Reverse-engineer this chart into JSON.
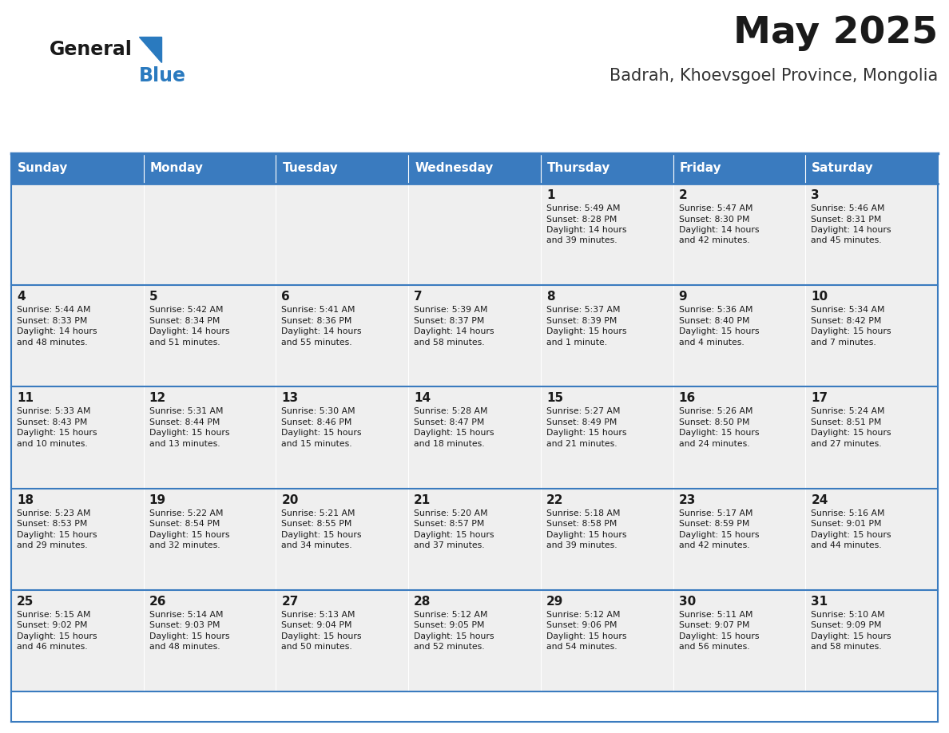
{
  "title": "May 2025",
  "subtitle": "Badrah, Khoevsgoel Province, Mongolia",
  "header_color": "#3a7bbf",
  "header_text_color": "#ffffff",
  "cell_bg_color": "#efefef",
  "border_color": "#3a7bbf",
  "day_headers": [
    "Sunday",
    "Monday",
    "Tuesday",
    "Wednesday",
    "Thursday",
    "Friday",
    "Saturday"
  ],
  "weeks": [
    [
      {
        "day": "",
        "sunrise": "",
        "sunset": "",
        "daylight": ""
      },
      {
        "day": "",
        "sunrise": "",
        "sunset": "",
        "daylight": ""
      },
      {
        "day": "",
        "sunrise": "",
        "sunset": "",
        "daylight": ""
      },
      {
        "day": "",
        "sunrise": "",
        "sunset": "",
        "daylight": ""
      },
      {
        "day": "1",
        "sunrise": "5:49 AM",
        "sunset": "8:28 PM",
        "daylight": "14 hours\nand 39 minutes."
      },
      {
        "day": "2",
        "sunrise": "5:47 AM",
        "sunset": "8:30 PM",
        "daylight": "14 hours\nand 42 minutes."
      },
      {
        "day": "3",
        "sunrise": "5:46 AM",
        "sunset": "8:31 PM",
        "daylight": "14 hours\nand 45 minutes."
      }
    ],
    [
      {
        "day": "4",
        "sunrise": "5:44 AM",
        "sunset": "8:33 PM",
        "daylight": "14 hours\nand 48 minutes."
      },
      {
        "day": "5",
        "sunrise": "5:42 AM",
        "sunset": "8:34 PM",
        "daylight": "14 hours\nand 51 minutes."
      },
      {
        "day": "6",
        "sunrise": "5:41 AM",
        "sunset": "8:36 PM",
        "daylight": "14 hours\nand 55 minutes."
      },
      {
        "day": "7",
        "sunrise": "5:39 AM",
        "sunset": "8:37 PM",
        "daylight": "14 hours\nand 58 minutes."
      },
      {
        "day": "8",
        "sunrise": "5:37 AM",
        "sunset": "8:39 PM",
        "daylight": "15 hours\nand 1 minute."
      },
      {
        "day": "9",
        "sunrise": "5:36 AM",
        "sunset": "8:40 PM",
        "daylight": "15 hours\nand 4 minutes."
      },
      {
        "day": "10",
        "sunrise": "5:34 AM",
        "sunset": "8:42 PM",
        "daylight": "15 hours\nand 7 minutes."
      }
    ],
    [
      {
        "day": "11",
        "sunrise": "5:33 AM",
        "sunset": "8:43 PM",
        "daylight": "15 hours\nand 10 minutes."
      },
      {
        "day": "12",
        "sunrise": "5:31 AM",
        "sunset": "8:44 PM",
        "daylight": "15 hours\nand 13 minutes."
      },
      {
        "day": "13",
        "sunrise": "5:30 AM",
        "sunset": "8:46 PM",
        "daylight": "15 hours\nand 15 minutes."
      },
      {
        "day": "14",
        "sunrise": "5:28 AM",
        "sunset": "8:47 PM",
        "daylight": "15 hours\nand 18 minutes."
      },
      {
        "day": "15",
        "sunrise": "5:27 AM",
        "sunset": "8:49 PM",
        "daylight": "15 hours\nand 21 minutes."
      },
      {
        "day": "16",
        "sunrise": "5:26 AM",
        "sunset": "8:50 PM",
        "daylight": "15 hours\nand 24 minutes."
      },
      {
        "day": "17",
        "sunrise": "5:24 AM",
        "sunset": "8:51 PM",
        "daylight": "15 hours\nand 27 minutes."
      }
    ],
    [
      {
        "day": "18",
        "sunrise": "5:23 AM",
        "sunset": "8:53 PM",
        "daylight": "15 hours\nand 29 minutes."
      },
      {
        "day": "19",
        "sunrise": "5:22 AM",
        "sunset": "8:54 PM",
        "daylight": "15 hours\nand 32 minutes."
      },
      {
        "day": "20",
        "sunrise": "5:21 AM",
        "sunset": "8:55 PM",
        "daylight": "15 hours\nand 34 minutes."
      },
      {
        "day": "21",
        "sunrise": "5:20 AM",
        "sunset": "8:57 PM",
        "daylight": "15 hours\nand 37 minutes."
      },
      {
        "day": "22",
        "sunrise": "5:18 AM",
        "sunset": "8:58 PM",
        "daylight": "15 hours\nand 39 minutes."
      },
      {
        "day": "23",
        "sunrise": "5:17 AM",
        "sunset": "8:59 PM",
        "daylight": "15 hours\nand 42 minutes."
      },
      {
        "day": "24",
        "sunrise": "5:16 AM",
        "sunset": "9:01 PM",
        "daylight": "15 hours\nand 44 minutes."
      }
    ],
    [
      {
        "day": "25",
        "sunrise": "5:15 AM",
        "sunset": "9:02 PM",
        "daylight": "15 hours\nand 46 minutes."
      },
      {
        "day": "26",
        "sunrise": "5:14 AM",
        "sunset": "9:03 PM",
        "daylight": "15 hours\nand 48 minutes."
      },
      {
        "day": "27",
        "sunrise": "5:13 AM",
        "sunset": "9:04 PM",
        "daylight": "15 hours\nand 50 minutes."
      },
      {
        "day": "28",
        "sunrise": "5:12 AM",
        "sunset": "9:05 PM",
        "daylight": "15 hours\nand 52 minutes."
      },
      {
        "day": "29",
        "sunrise": "5:12 AM",
        "sunset": "9:06 PM",
        "daylight": "15 hours\nand 54 minutes."
      },
      {
        "day": "30",
        "sunrise": "5:11 AM",
        "sunset": "9:07 PM",
        "daylight": "15 hours\nand 56 minutes."
      },
      {
        "day": "31",
        "sunrise": "5:10 AM",
        "sunset": "9:09 PM",
        "daylight": "15 hours\nand 58 minutes."
      }
    ]
  ],
  "logo_general_color": "#1a1a1a",
  "logo_blue_color": "#2a7abf",
  "logo_triangle_color": "#2a7abf",
  "title_color": "#1a1a1a",
  "subtitle_color": "#333333",
  "day_number_color": "#1a1a1a",
  "cell_text_color": "#1a1a1a",
  "title_fontsize": 34,
  "subtitle_fontsize": 15,
  "header_fontsize": 11,
  "day_num_fontsize": 11,
  "cell_text_fontsize": 7.8
}
